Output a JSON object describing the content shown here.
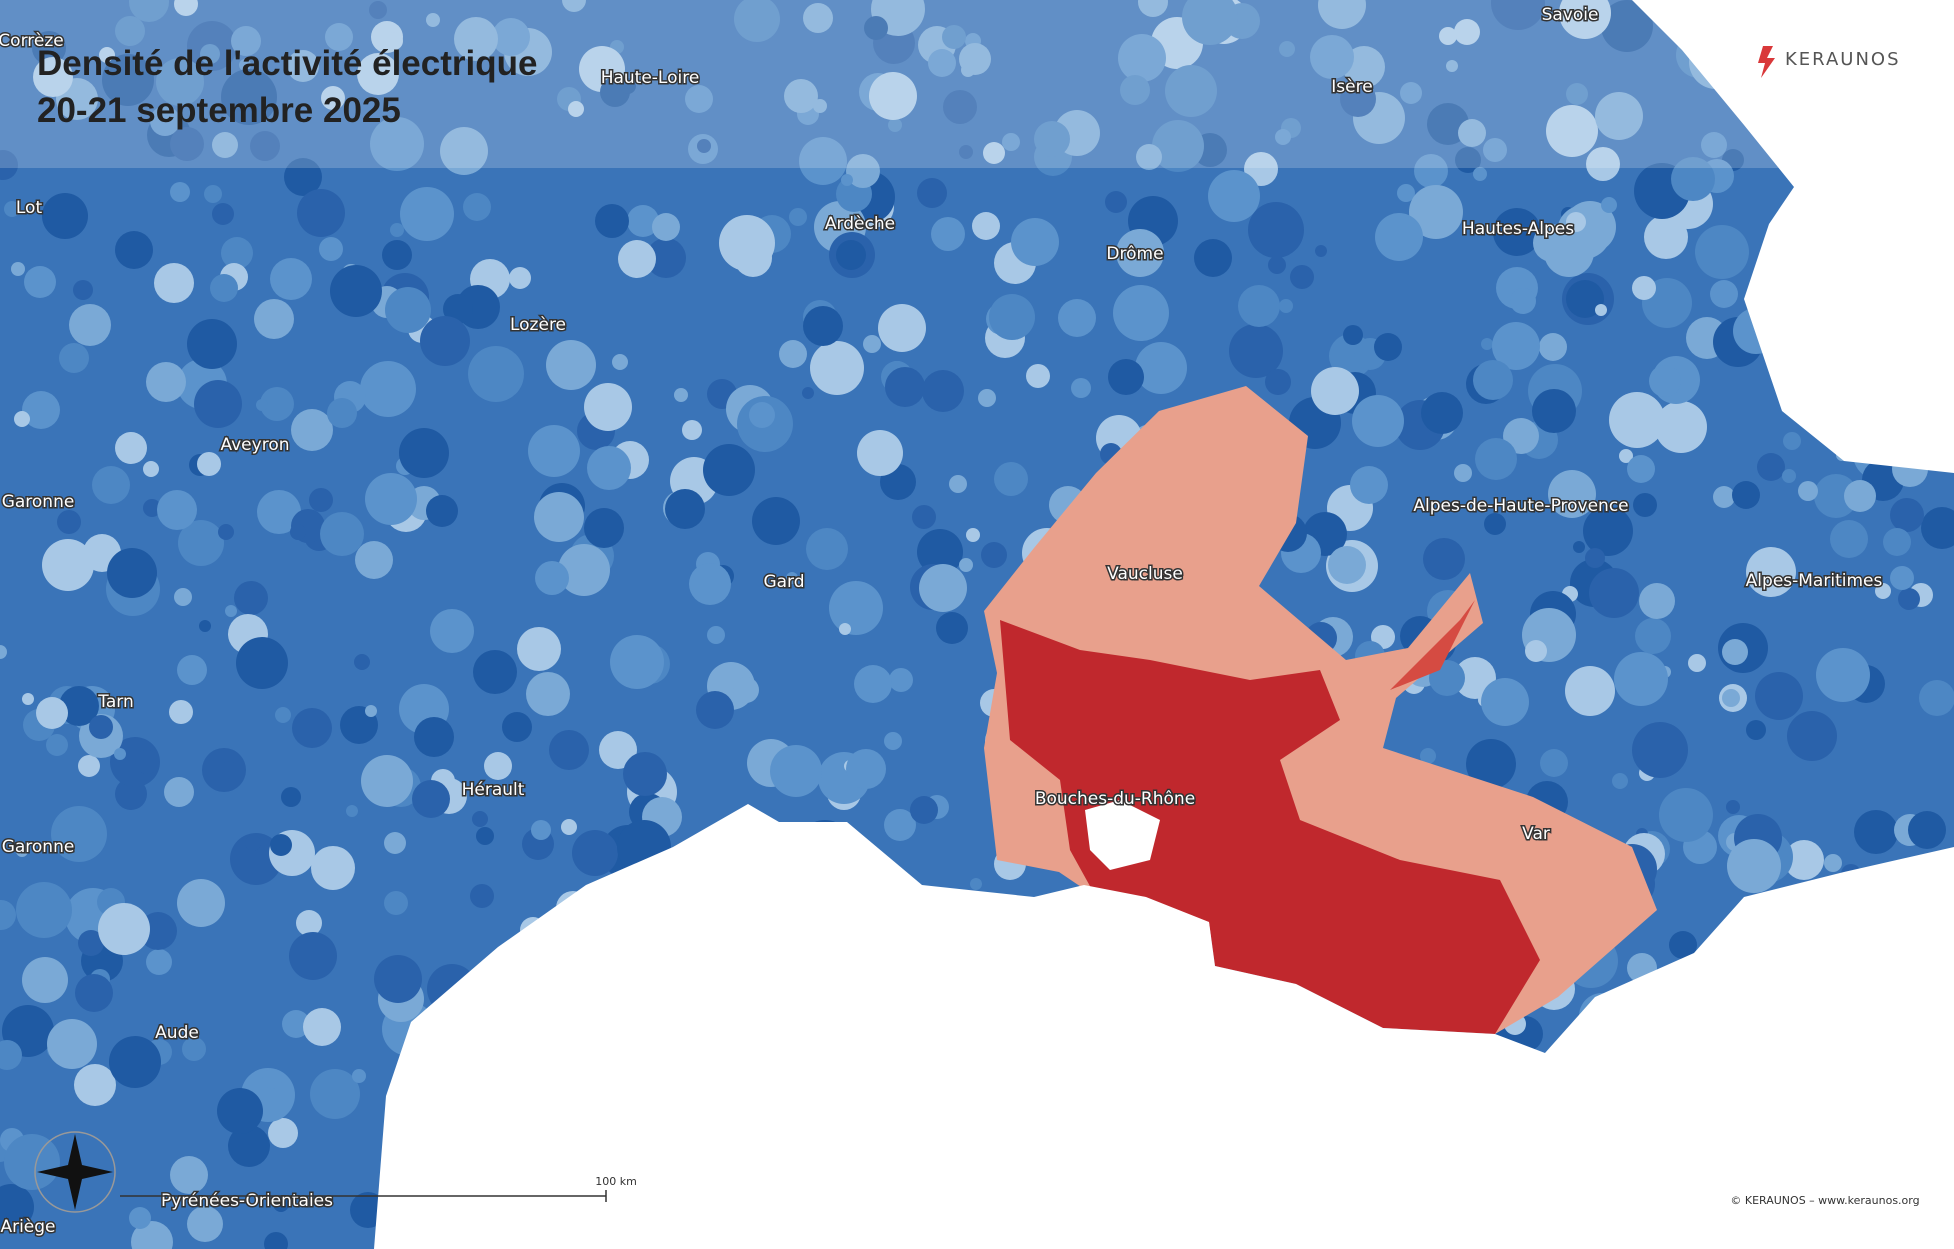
{
  "header": {
    "title": "Densité de l'activité électrique",
    "subtitle": "20-21 septembre 2025",
    "logo": "KERAUNOS"
  },
  "map": {
    "labels": [
      "Corrèze",
      "Haute-Loire",
      "Savoie",
      "Isère",
      "Lot",
      "Ardèche",
      "Drôme",
      "Hautes-Alpes",
      "Lozère",
      "Aveyron",
      "Garonne",
      "Alpes-de-Haute-Provence",
      "Vaucluse",
      "Gard",
      "Alpes-Maritimes",
      "Tarn",
      "Hérault",
      "Bouches-du-Rhône",
      "Var",
      "Garonne",
      "Aude",
      "Pyrénées-Orientales",
      "Ariège"
    ],
    "scale": "100 km"
  },
  "footer": {
    "copyright": "© KERAUNOS – www.keraunos.org"
  }
}
